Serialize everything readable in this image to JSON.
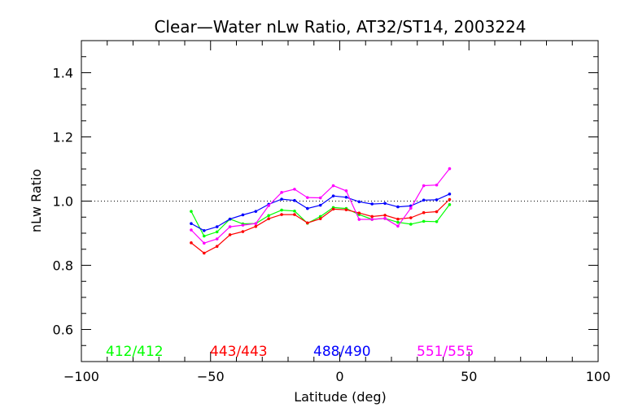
{
  "chart_data": {
    "type": "line",
    "title": "Clear—Water nLw Ratio, AT32/ST14, 2003224",
    "xlabel": "Latitude (deg)",
    "ylabel": "nLw Ratio",
    "xlim": [
      -100,
      100
    ],
    "ylim": [
      0.5,
      1.5
    ],
    "xticks": [
      -100,
      -50,
      0,
      50,
      100
    ],
    "yticks": [
      0.6,
      0.8,
      1.0,
      1.2,
      1.4
    ],
    "reference_line": 1.0,
    "grid": false,
    "legend_position": "bottom",
    "x": [
      -57.5,
      -52.5,
      -47.5,
      -42.5,
      -37.5,
      -32.5,
      -27.5,
      -22.5,
      -17.5,
      -12.5,
      -7.5,
      -2.5,
      2.5,
      7.5,
      12.5,
      17.5,
      22.5,
      27.5,
      32.5,
      37.5,
      42.5
    ],
    "series": [
      {
        "name": "412/412",
        "color": "#00ff00",
        "values": [
          0.968,
          0.891,
          0.904,
          0.944,
          0.929,
          0.93,
          0.955,
          0.972,
          0.969,
          0.931,
          0.952,
          0.98,
          0.977,
          0.958,
          0.943,
          0.946,
          0.934,
          0.928,
          0.937,
          0.936,
          0.989
        ]
      },
      {
        "name": "443/443",
        "color": "#ff0000",
        "values": [
          0.87,
          0.838,
          0.859,
          0.895,
          0.905,
          0.921,
          0.945,
          0.958,
          0.958,
          0.932,
          0.945,
          0.975,
          0.973,
          0.963,
          0.952,
          0.956,
          0.944,
          0.948,
          0.964,
          0.967,
          1.005
        ]
      },
      {
        "name": "488/490",
        "color": "#0000ff",
        "values": [
          0.93,
          0.908,
          0.92,
          0.944,
          0.957,
          0.968,
          0.99,
          1.006,
          1.002,
          0.977,
          0.987,
          1.016,
          1.012,
          0.998,
          0.991,
          0.993,
          0.982,
          0.985,
          1.003,
          1.004,
          1.022
        ]
      },
      {
        "name": "551/555",
        "color": "#ff00ff",
        "values": [
          0.91,
          0.869,
          0.882,
          0.92,
          0.925,
          0.93,
          0.986,
          1.027,
          1.037,
          1.011,
          1.01,
          1.048,
          1.032,
          0.943,
          0.943,
          0.946,
          0.922,
          0.978,
          1.048,
          1.05,
          1.101
        ]
      }
    ]
  }
}
